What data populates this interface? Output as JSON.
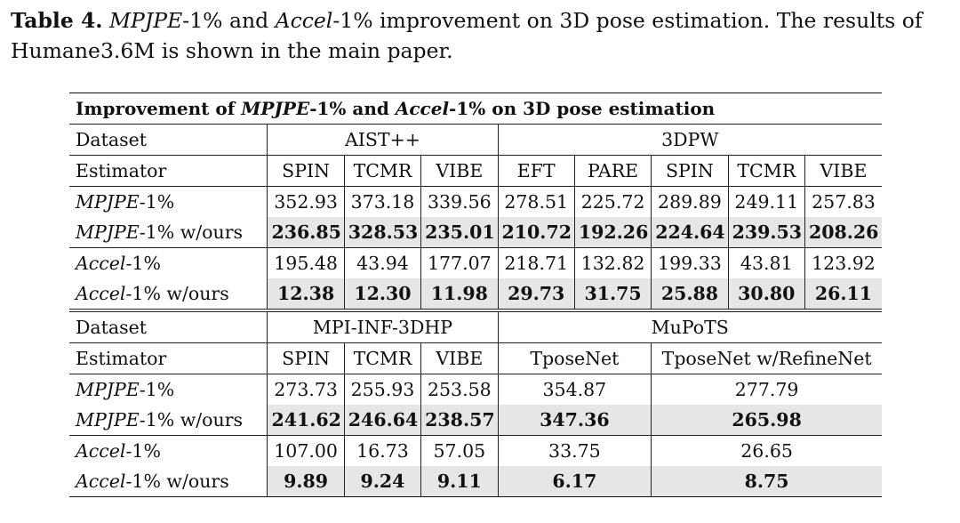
{
  "caption": {
    "label": "Table 4.",
    "m1": "MPJPE",
    "t1": "-1% and ",
    "m2": "Accel",
    "t2": "-1% improvement on 3D pose estimation. The results of Humane3.6M is shown in the main paper."
  },
  "table": {
    "title_pre": "Improvement of ",
    "title_m1": "MPJPE",
    "title_mid": "-1% and ",
    "title_m2": "Accel",
    "title_post": "-1% on 3D pose estimation",
    "labels": {
      "dataset": "Dataset",
      "estimator": "Estimator",
      "mpjpe": "MPJPE",
      "accel": "Accel",
      "suffix": "-1%",
      "suffix_ours": "-1% w/ours"
    },
    "section1": {
      "datasets": [
        "AIST++",
        "3DPW"
      ],
      "estimators": [
        "SPIN",
        "TCMR",
        "VIBE",
        "EFT",
        "PARE",
        "SPIN",
        "TCMR",
        "VIBE"
      ],
      "mpjpe": [
        "352.93",
        "373.18",
        "339.56",
        "278.51",
        "225.72",
        "289.89",
        "249.11",
        "257.83"
      ],
      "mpjpe_ours": [
        "236.85",
        "328.53",
        "235.01",
        "210.72",
        "192.26",
        "224.64",
        "239.53",
        "208.26"
      ],
      "accel": [
        "195.48",
        "43.94",
        "177.07",
        "218.71",
        "132.82",
        "199.33",
        "43.81",
        "123.92"
      ],
      "accel_ours": [
        "12.38",
        "12.30",
        "11.98",
        "29.73",
        "31.75",
        "25.88",
        "30.80",
        "26.11"
      ]
    },
    "section2": {
      "datasets": [
        "MPI-INF-3DHP",
        "MuPoTS"
      ],
      "estimators": [
        "SPIN",
        "TCMR",
        "VIBE",
        "TposeNet",
        "TposeNet w/RefineNet"
      ],
      "mpjpe": [
        "273.73",
        "255.93",
        "253.58",
        "354.87",
        "277.79"
      ],
      "mpjpe_ours": [
        "241.62",
        "246.64",
        "238.57",
        "347.36",
        "265.98"
      ],
      "accel": [
        "107.00",
        "16.73",
        "57.05",
        "33.75",
        "26.65"
      ],
      "accel_ours": [
        "9.89",
        "9.24",
        "9.11",
        "6.17",
        "8.75"
      ]
    }
  }
}
